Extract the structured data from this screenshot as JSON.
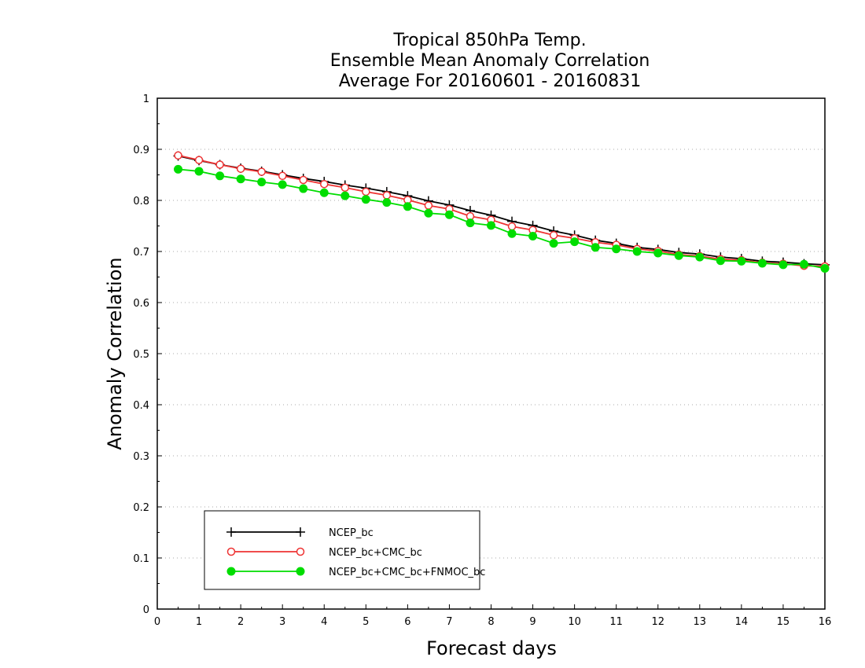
{
  "chart_data": {
    "type": "line",
    "title_lines": [
      "Tropical 850hPa Temp.",
      "Ensemble Mean Anomaly Correlation",
      "Average For 20160601 - 20160831"
    ],
    "xlabel": "Forecast days",
    "ylabel": "Anomaly Correlation",
    "xlim": [
      0,
      16
    ],
    "ylim": [
      0,
      1
    ],
    "x_ticks": [
      "0",
      "1",
      "2",
      "3",
      "4",
      "5",
      "6",
      "7",
      "8",
      "9",
      "10",
      "11",
      "12",
      "13",
      "14",
      "15",
      "16"
    ],
    "y_ticks": [
      "0",
      "0.1",
      "0.2",
      "0.3",
      "0.4",
      "0.5",
      "0.6",
      "0.7",
      "0.8",
      "0.9",
      "1"
    ],
    "grid": "horizontal dotted",
    "legend_position": "bottom-left",
    "x": [
      0.5,
      1,
      1.5,
      2,
      2.5,
      3,
      3.5,
      4,
      4.5,
      5,
      5.5,
      6,
      6.5,
      7,
      7.5,
      8,
      8.5,
      9,
      9.5,
      10,
      10.5,
      11,
      11.5,
      12,
      12.5,
      13,
      13.5,
      14,
      14.5,
      15,
      15.5,
      16
    ],
    "series": [
      {
        "name": "NCEP_bc",
        "color": "#000000",
        "marker": "plus",
        "values": [
          0.887,
          0.878,
          0.87,
          0.863,
          0.857,
          0.85,
          0.843,
          0.837,
          0.83,
          0.824,
          0.817,
          0.809,
          0.799,
          0.791,
          0.78,
          0.771,
          0.759,
          0.751,
          0.74,
          0.732,
          0.722,
          0.716,
          0.708,
          0.704,
          0.698,
          0.695,
          0.689,
          0.686,
          0.681,
          0.679,
          0.676,
          0.674
        ]
      },
      {
        "name": "NCEP_bc+CMC_bc",
        "color": "#ee3333",
        "marker": "open-circle",
        "values": [
          0.888,
          0.879,
          0.87,
          0.862,
          0.856,
          0.848,
          0.84,
          0.832,
          0.825,
          0.817,
          0.81,
          0.801,
          0.79,
          0.783,
          0.769,
          0.762,
          0.749,
          0.742,
          0.732,
          0.726,
          0.718,
          0.713,
          0.705,
          0.701,
          0.694,
          0.691,
          0.685,
          0.683,
          0.678,
          0.676,
          0.672,
          0.671
        ]
      },
      {
        "name": "NCEP_bc+CMC_bc+FNMOC_bc",
        "color": "#00dd00",
        "marker": "filled-circle",
        "values": [
          0.861,
          0.857,
          0.848,
          0.842,
          0.836,
          0.831,
          0.823,
          0.815,
          0.809,
          0.802,
          0.796,
          0.788,
          0.775,
          0.772,
          0.756,
          0.751,
          0.735,
          0.73,
          0.716,
          0.719,
          0.708,
          0.705,
          0.7,
          0.697,
          0.692,
          0.689,
          0.682,
          0.681,
          0.677,
          0.674,
          0.675,
          0.667
        ]
      }
    ]
  }
}
